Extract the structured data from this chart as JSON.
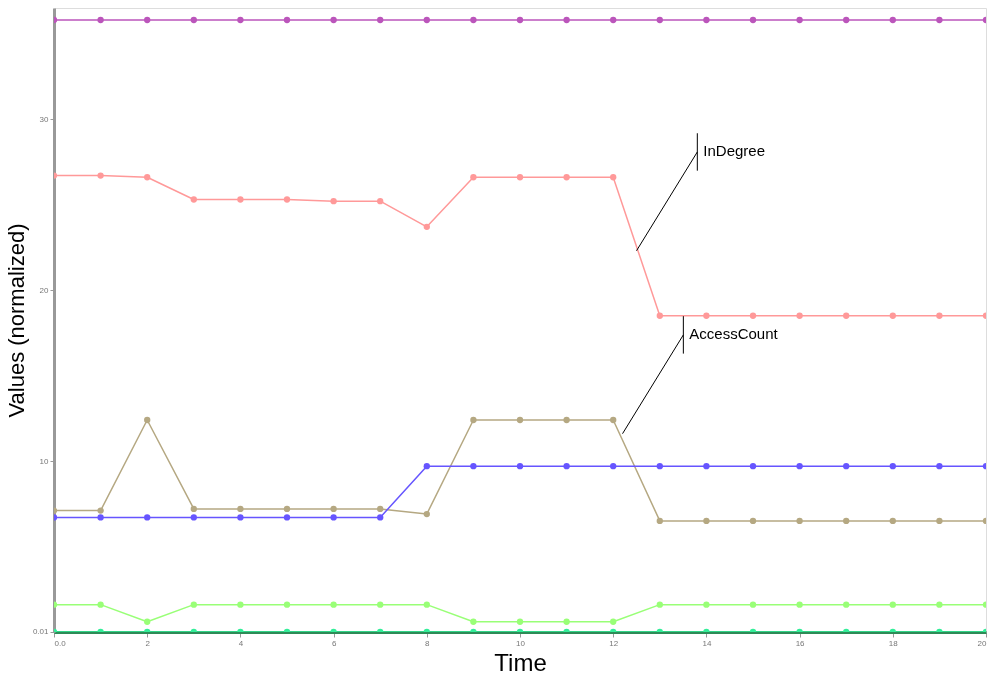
{
  "chart_data": {
    "type": "line",
    "xlabel": "Time",
    "ylabel": "Values (normalized)",
    "x": [
      0,
      1,
      2,
      3,
      4,
      5,
      6,
      7,
      8,
      9,
      10,
      11,
      12,
      13,
      14,
      15,
      16,
      17,
      18,
      19,
      20
    ],
    "xlim": [
      0,
      20
    ],
    "xticks": [
      {
        "value": 0,
        "label": "0.0"
      },
      2,
      4,
      6,
      8,
      10,
      12,
      14,
      16,
      18,
      20
    ],
    "ylim": [
      0,
      36.5
    ],
    "yticks": [
      {
        "value": 0.01,
        "label": "0.01"
      },
      10,
      20,
      30
    ],
    "grid": false,
    "marker": "circle",
    "line_style": "solid",
    "series": [
      {
        "color": "#bb55bb",
        "values": [
          35.8,
          35.8,
          35.8,
          35.8,
          35.8,
          35.8,
          35.8,
          35.8,
          35.8,
          35.8,
          35.8,
          35.8,
          35.8,
          35.8,
          35.8,
          35.8,
          35.8,
          35.8,
          35.8,
          35.8,
          35.8
        ]
      },
      {
        "color": "#ff9999",
        "values": [
          26.7,
          26.7,
          26.6,
          25.3,
          25.3,
          25.3,
          25.2,
          25.2,
          23.7,
          26.6,
          26.6,
          26.6,
          26.6,
          18.5,
          18.5,
          18.5,
          18.5,
          18.5,
          18.5,
          18.5,
          18.5
        ]
      },
      {
        "color": "#b5a882",
        "values": [
          7.1,
          7.1,
          12.4,
          7.2,
          7.2,
          7.2,
          7.2,
          7.2,
          6.9,
          12.4,
          12.4,
          12.4,
          12.4,
          6.5,
          6.5,
          6.5,
          6.5,
          6.5,
          6.5,
          6.5,
          6.5
        ]
      },
      {
        "color": "#6655ff",
        "values": [
          6.7,
          6.7,
          6.7,
          6.7,
          6.7,
          6.7,
          6.7,
          6.7,
          9.7,
          9.7,
          9.7,
          9.7,
          9.7,
          9.7,
          9.7,
          9.7,
          9.7,
          9.7,
          9.7,
          9.7,
          9.7
        ]
      },
      {
        "color": "#99ff77",
        "values": [
          1.6,
          1.6,
          0.6,
          1.6,
          1.6,
          1.6,
          1.6,
          1.6,
          1.6,
          0.6,
          0.6,
          0.6,
          0.6,
          1.6,
          1.6,
          1.6,
          1.6,
          1.6,
          1.6,
          1.6,
          1.6
        ]
      },
      {
        "color": "#33ee99",
        "values": [
          0,
          0,
          0,
          0,
          0,
          0,
          0,
          0,
          0,
          0,
          0,
          0,
          0,
          0,
          0,
          0,
          0,
          0,
          0,
          0,
          0
        ]
      }
    ],
    "annotations": [
      {
        "text": "InDegree",
        "x": 12.5,
        "y": 22.3
      },
      {
        "text": "AccessCount",
        "x": 12.2,
        "y": 11.6
      }
    ]
  }
}
